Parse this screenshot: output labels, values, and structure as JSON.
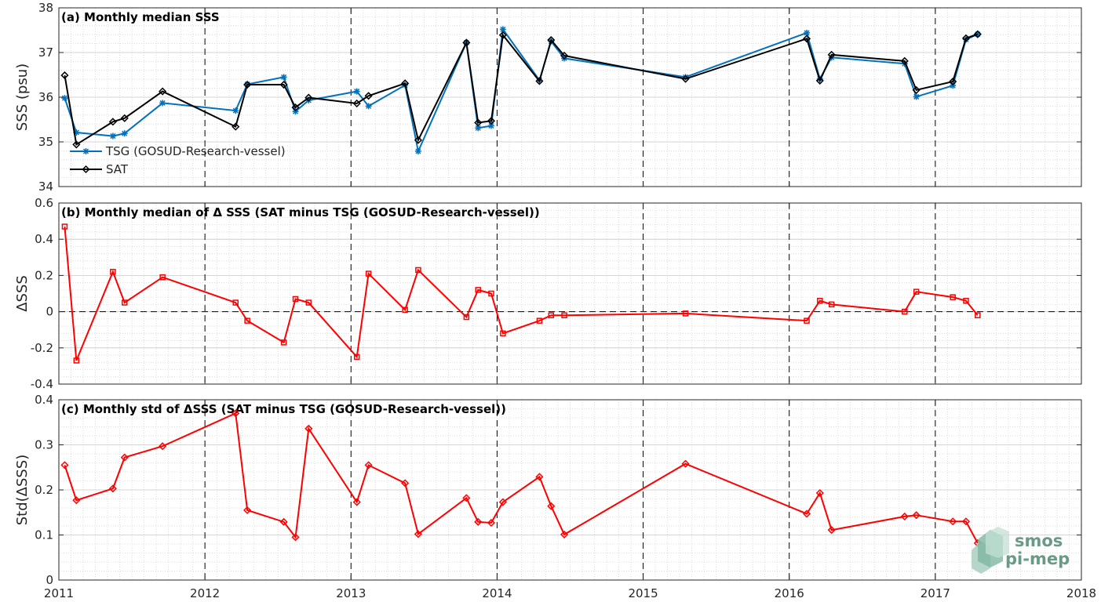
{
  "chart_data": [
    {
      "type": "line",
      "title": "(a) Monthly median SSS",
      "ylabel": "SSS (psu)",
      "ylim": [
        34,
        38
      ],
      "yticks": [
        "34",
        "35",
        "36",
        "37",
        "38"
      ],
      "xlim": [
        2011,
        2018
      ],
      "xticks": [
        "2011",
        "2012",
        "2013",
        "2014",
        "2015",
        "2016",
        "2017",
        "2018"
      ],
      "grid": "minor dotted + dashed yearly lines",
      "legend_position": "bottom-left",
      "series": [
        {
          "name": "TSG (GOSUD-Research-vessel)",
          "color": "#0072bd",
          "marker": "asterisk",
          "x": [
            2011.04,
            2011.12,
            2011.37,
            2011.45,
            2011.71,
            2012.21,
            2012.29,
            2012.54,
            2012.62,
            2012.71,
            2013.04,
            2013.12,
            2013.37,
            2013.46,
            2013.79,
            2013.87,
            2013.96,
            2014.04,
            2014.29,
            2014.37,
            2014.46,
            2015.29,
            2016.12,
            2016.21,
            2016.29,
            2016.79,
            2016.87,
            2017.12,
            2017.21,
            2017.29
          ],
          "y": [
            35.98,
            35.21,
            35.13,
            35.19,
            35.87,
            35.7,
            36.29,
            36.45,
            35.68,
            35.93,
            36.13,
            35.8,
            36.27,
            34.79,
            37.22,
            35.31,
            35.36,
            37.52,
            36.38,
            37.25,
            36.87,
            36.45,
            37.44,
            36.41,
            36.89,
            36.75,
            36.01,
            36.26,
            37.29,
            37.41
          ]
        },
        {
          "name": "SAT",
          "color": "#000000",
          "marker": "diamond",
          "x": [
            2011.04,
            2011.12,
            2011.37,
            2011.45,
            2011.71,
            2012.21,
            2012.29,
            2012.54,
            2012.62,
            2012.71,
            2013.04,
            2013.12,
            2013.37,
            2013.46,
            2013.79,
            2013.87,
            2013.96,
            2014.04,
            2014.29,
            2014.37,
            2014.46,
            2015.29,
            2016.12,
            2016.21,
            2016.29,
            2016.79,
            2016.87,
            2017.12,
            2017.21,
            2017.29
          ],
          "y": [
            36.49,
            34.94,
            35.45,
            35.53,
            36.13,
            35.34,
            36.28,
            36.28,
            35.77,
            35.99,
            35.86,
            36.03,
            36.31,
            35.04,
            37.22,
            35.43,
            35.47,
            37.39,
            36.36,
            37.28,
            36.93,
            36.41,
            37.31,
            36.37,
            36.95,
            36.81,
            36.16,
            36.35,
            37.32,
            37.41
          ]
        }
      ]
    },
    {
      "type": "line",
      "title": "(b) Monthly median of Δ SSS (SAT minus TSG (GOSUD-Research-vessel))",
      "ylabel": "ΔSSS",
      "ylim": [
        -0.4,
        0.6
      ],
      "yticks": [
        "-0.4",
        "-0.2",
        "0",
        "0.2",
        "0.4",
        "0.6"
      ],
      "xlim": [
        2011,
        2018
      ],
      "xticks": [
        "2011",
        "2012",
        "2013",
        "2014",
        "2015",
        "2016",
        "2017",
        "2018"
      ],
      "zero_line": "dashed",
      "series": [
        {
          "color": "#ff0000",
          "marker": "square",
          "x": [
            2011.04,
            2011.12,
            2011.37,
            2011.45,
            2011.71,
            2012.21,
            2012.29,
            2012.54,
            2012.62,
            2012.71,
            2013.04,
            2013.12,
            2013.37,
            2013.46,
            2013.79,
            2013.87,
            2013.96,
            2014.04,
            2014.29,
            2014.37,
            2014.46,
            2015.29,
            2016.12,
            2016.21,
            2016.29,
            2016.79,
            2016.87,
            2017.12,
            2017.21,
            2017.29
          ],
          "y": [
            0.47,
            -0.27,
            0.22,
            0.05,
            0.19,
            0.05,
            -0.05,
            -0.17,
            0.07,
            0.05,
            -0.25,
            0.21,
            0.01,
            0.23,
            -0.03,
            0.12,
            0.1,
            -0.12,
            -0.05,
            -0.02,
            -0.02,
            -0.01,
            -0.05,
            0.06,
            0.04,
            0.0,
            0.11,
            0.08,
            0.06,
            -0.02
          ]
        }
      ]
    },
    {
      "type": "line",
      "title": "(c) Monthly std of ΔSSS (SAT minus TSG (GOSUD-Research-vessel))",
      "ylabel": "Std(ΔSSS)",
      "ylim": [
        0,
        0.4
      ],
      "yticks": [
        "0",
        "0.1",
        "0.2",
        "0.3",
        "0.4"
      ],
      "xlim": [
        2011,
        2018
      ],
      "xticks": [
        "2011",
        "2012",
        "2013",
        "2014",
        "2015",
        "2016",
        "2017",
        "2018"
      ],
      "series": [
        {
          "color": "#ff0000",
          "marker": "diamond",
          "x": [
            2011.04,
            2011.12,
            2011.37,
            2011.45,
            2011.71,
            2012.21,
            2012.29,
            2012.54,
            2012.62,
            2012.71,
            2013.04,
            2013.12,
            2013.37,
            2013.46,
            2013.79,
            2013.87,
            2013.96,
            2014.04,
            2014.29,
            2014.37,
            2014.46,
            2015.29,
            2016.12,
            2016.21,
            2016.29,
            2016.79,
            2016.87,
            2017.12,
            2017.21,
            2017.29
          ],
          "y": [
            0.255,
            0.177,
            0.203,
            0.272,
            0.297,
            0.37,
            0.155,
            0.129,
            0.095,
            0.336,
            0.173,
            0.255,
            0.215,
            0.102,
            0.182,
            0.129,
            0.127,
            0.173,
            0.229,
            0.164,
            0.101,
            0.258,
            0.147,
            0.193,
            0.111,
            0.141,
            0.144,
            0.13,
            0.13,
            0.082
          ]
        }
      ]
    }
  ],
  "logo": {
    "line1": "smos",
    "line2": "pi-mep",
    "color": "#6a9a86"
  }
}
